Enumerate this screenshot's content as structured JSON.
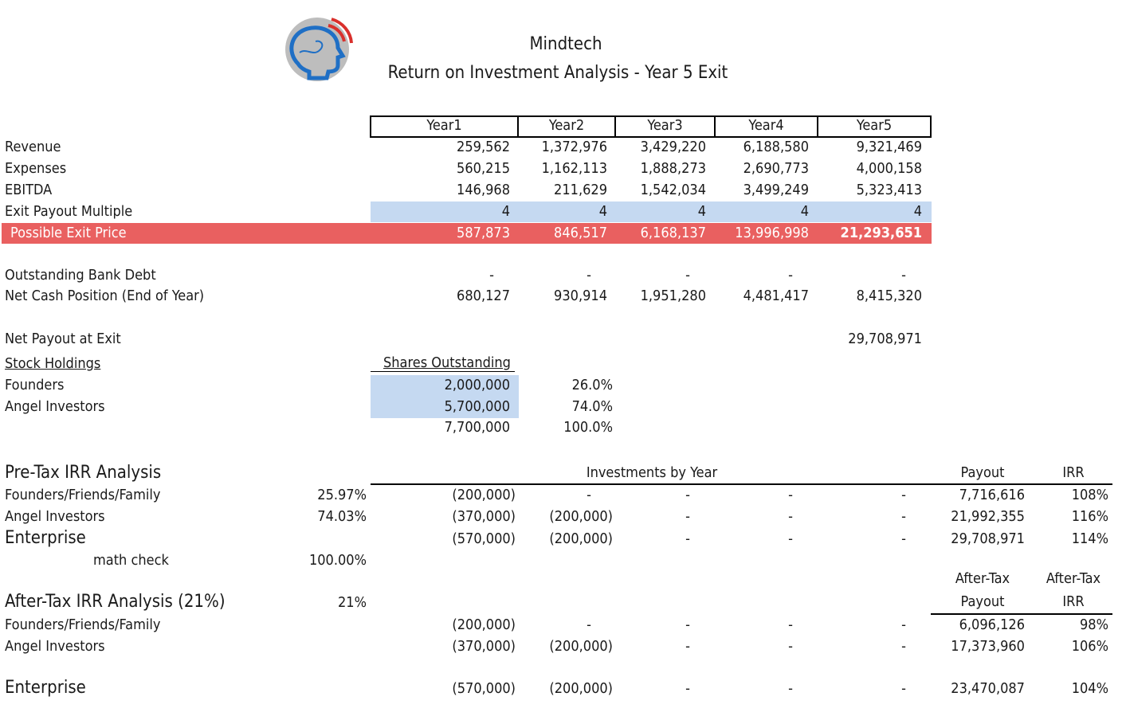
{
  "header": {
    "company": "Mindtech",
    "subtitle": "Return on Investment Analysis - Year 5 Exit"
  },
  "years": [
    "Year1",
    "Year2",
    "Year3",
    "Year4",
    "Year5"
  ],
  "rows": {
    "revenue": {
      "label": "Revenue",
      "values": [
        "259,562",
        "1,372,976",
        "3,429,220",
        "6,188,580",
        "9,321,469"
      ]
    },
    "expenses": {
      "label": "Expenses",
      "values": [
        "560,215",
        "1,162,113",
        "1,888,273",
        "2,690,773",
        "4,000,158"
      ]
    },
    "ebitda": {
      "label": "EBITDA",
      "values": [
        "146,968",
        "211,629",
        "1,542,034",
        "3,499,249",
        "5,323,413"
      ]
    },
    "multiple": {
      "label": "Exit Payout Multiple",
      "values": [
        "4",
        "4",
        "4",
        "4",
        "4"
      ]
    },
    "exit_price": {
      "label": "Possible Exit Price",
      "values": [
        "587,873",
        "846,517",
        "6,168,137",
        "13,996,998",
        "21,293,651"
      ]
    },
    "bank_debt": {
      "label": "Outstanding Bank Debt",
      "values": [
        "-",
        "-",
        "-",
        "-",
        "-"
      ]
    },
    "net_cash": {
      "label": "Net Cash Position (End of Year)",
      "values": [
        "680,127",
        "930,914",
        "1,951,280",
        "4,481,417",
        "8,415,320"
      ]
    },
    "net_payout": {
      "label": "Net Payout at Exit",
      "value": "29,708,971"
    }
  },
  "stock": {
    "label": "Stock Holdings",
    "shares_header": "Shares Outstanding",
    "founders": {
      "label": "Founders",
      "shares": "2,000,000",
      "pct": "26.0%"
    },
    "angels": {
      "label": "Angel Investors",
      "shares": "5,700,000",
      "pct": "74.0%"
    },
    "total": {
      "shares": "7,700,000",
      "pct": "100.0%"
    }
  },
  "pretax": {
    "title": "Pre-Tax IRR Analysis",
    "investments_header": "Investments by Year",
    "payout_header": "Payout",
    "irr_header": "IRR",
    "rows": [
      {
        "label": "Founders/Friends/Family",
        "pct": "25.97%",
        "inv": [
          "(200,000)",
          "-",
          "-",
          "-",
          "-"
        ],
        "payout": "7,716,616",
        "irr": "108%"
      },
      {
        "label": "Angel Investors",
        "pct": "74.03%",
        "inv": [
          "(370,000)",
          "(200,000)",
          "-",
          "-",
          "-"
        ],
        "payout": "21,992,355",
        "irr": "116%"
      },
      {
        "label": "Enterprise",
        "pct": "",
        "inv": [
          "(570,000)",
          "(200,000)",
          "-",
          "-",
          "-"
        ],
        "payout": "29,708,971",
        "irr": "114%"
      }
    ],
    "math_check_label": "math check",
    "math_check_value": "100.00%"
  },
  "aftertax": {
    "title": "After-Tax IRR Analysis (21%)",
    "rate": "21%",
    "payout_header_1": "After-Tax",
    "payout_header_2": "Payout",
    "irr_header_1": "After-Tax",
    "irr_header_2": "IRR",
    "rows": [
      {
        "label": "Founders/Friends/Family",
        "inv": [
          "(200,000)",
          "-",
          "-",
          "-",
          "-"
        ],
        "payout": "6,096,126",
        "irr": "98%"
      },
      {
        "label": "Angel Investors",
        "inv": [
          "(370,000)",
          "(200,000)",
          "-",
          "-",
          "-"
        ],
        "payout": "17,373,960",
        "irr": "106%"
      }
    ],
    "enterprise": {
      "label": "Enterprise",
      "inv": [
        "(570,000)",
        "(200,000)",
        "-",
        "-",
        "-"
      ],
      "payout": "23,470,087",
      "irr": "104%"
    }
  },
  "colors": {
    "highlight_blue": "#c5d9f1",
    "highlight_red": "#e96060",
    "logo_gray": "#bdbdbd",
    "logo_blue": "#1f6fc5",
    "logo_red": "#d9302c"
  }
}
